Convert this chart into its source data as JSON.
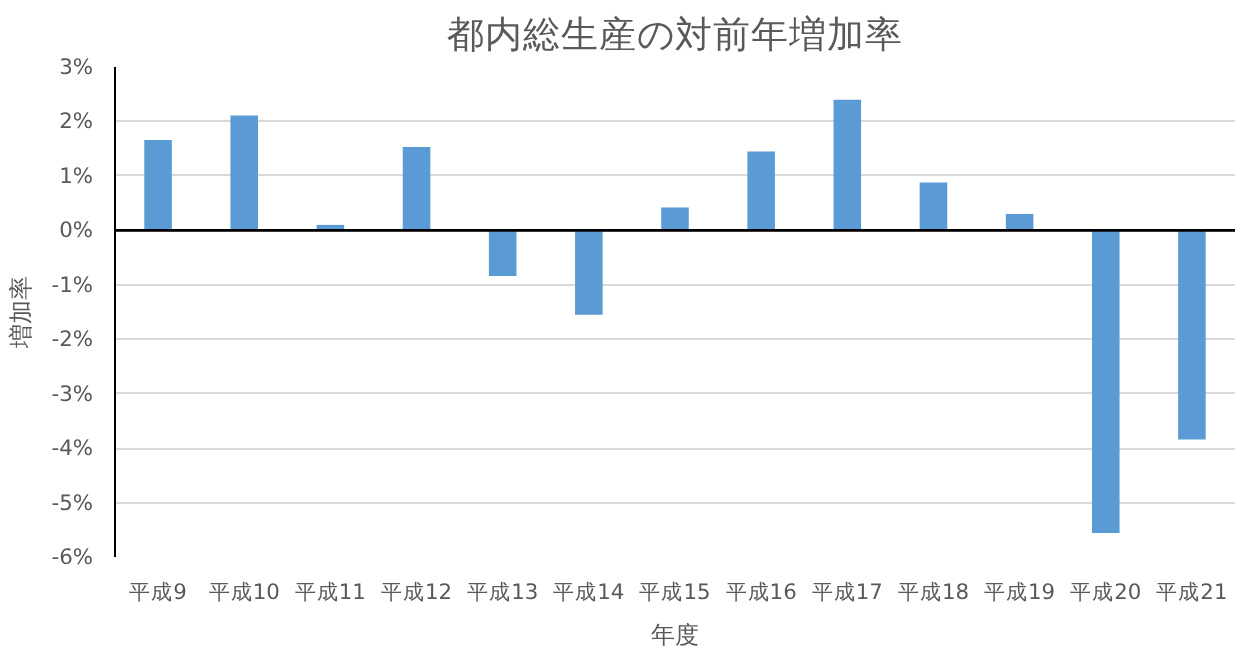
{
  "chart_data": {
    "type": "bar",
    "title": "都内総生産の対前年増加率",
    "xlabel": "年度",
    "ylabel": "増加率",
    "categories": [
      "平成9",
      "平成10",
      "平成11",
      "平成12",
      "平成13",
      "平成14",
      "平成15",
      "平成16",
      "平成17",
      "平成18",
      "平成19",
      "平成20",
      "平成21"
    ],
    "values": [
      1.66,
      2.11,
      0.1,
      1.53,
      -0.84,
      -1.55,
      0.42,
      1.45,
      2.4,
      0.88,
      0.3,
      -5.56,
      -3.84
    ],
    "color": "#5b9bd5",
    "ylim": [
      -6,
      3
    ],
    "yticks": [
      {
        "value": -6,
        "label": "-6%"
      },
      {
        "value": -5,
        "label": "-5%"
      },
      {
        "value": -4,
        "label": "-4%"
      },
      {
        "value": -3,
        "label": "-3%"
      },
      {
        "value": -2,
        "label": "-2%"
      },
      {
        "value": -1,
        "label": "-1%"
      },
      {
        "value": 0,
        "label": "0%"
      },
      {
        "value": 1,
        "label": "1%"
      },
      {
        "value": 2,
        "label": "2%"
      },
      {
        "value": 3,
        "label": "3%"
      }
    ],
    "grid": "y"
  }
}
